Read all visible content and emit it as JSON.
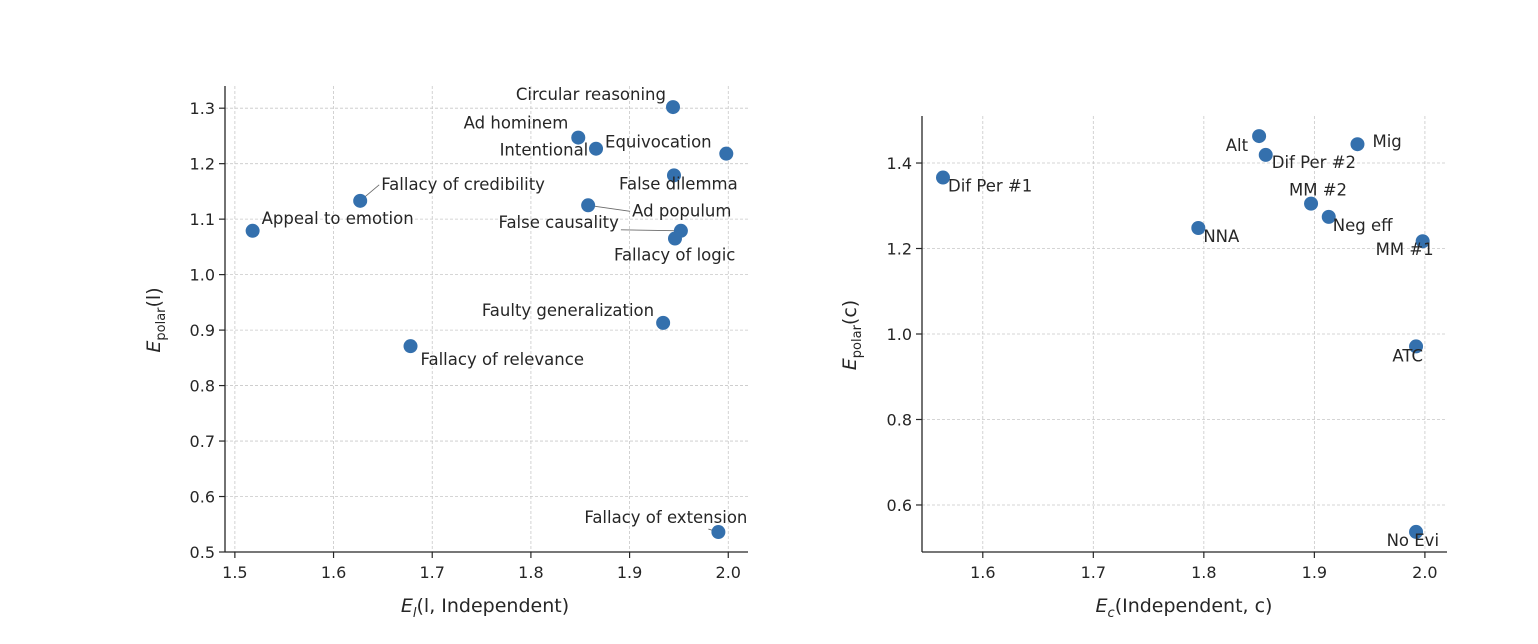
{
  "colors": {
    "point": "#3470ad",
    "axis": "#262626",
    "grid": "#c8c8c8"
  },
  "chart_data": [
    {
      "type": "scatter",
      "title": "",
      "xlabel": {
        "main": "E",
        "sub": "l",
        "paren": "(l, Independent)"
      },
      "ylabel": {
        "main": "E",
        "sub": "polar",
        "paren": "(l)"
      },
      "xlim": [
        1.49,
        2.02
      ],
      "ylim": [
        0.5,
        1.34
      ],
      "xticks": [
        "1.5",
        "1.6",
        "1.7",
        "1.8",
        "1.9",
        "2.0"
      ],
      "yticks": [
        "0.5",
        "0.6",
        "0.7",
        "0.8",
        "0.9",
        "1.0",
        "1.1",
        "1.2",
        "1.3"
      ],
      "grid": true,
      "points": [
        {
          "label": "Circular reasoning",
          "x": 1.944,
          "y": 1.302
        },
        {
          "label": "Ad hominem",
          "x": 1.848,
          "y": 1.247
        },
        {
          "label": "Equivocation",
          "x": 1.866,
          "y": 1.227
        },
        {
          "label": "Intentional",
          "x": 1.998,
          "y": 1.218
        },
        {
          "label": "False dilemma",
          "x": 1.945,
          "y": 1.179
        },
        {
          "label": "Fallacy of credibility",
          "x": 1.627,
          "y": 1.133
        },
        {
          "label": "Ad populum",
          "x": 1.858,
          "y": 1.125
        },
        {
          "label": "Appeal to emotion",
          "x": 1.518,
          "y": 1.079
        },
        {
          "label": "False causality",
          "x": 1.952,
          "y": 1.079
        },
        {
          "label": "Fallacy of logic",
          "x": 1.946,
          "y": 1.065
        },
        {
          "label": "Faulty generalization",
          "x": 1.934,
          "y": 0.913
        },
        {
          "label": "Fallacy of relevance",
          "x": 1.678,
          "y": 0.871
        },
        {
          "label": "Fallacy of extension",
          "x": 1.99,
          "y": 0.536
        }
      ]
    },
    {
      "type": "scatter",
      "title": "",
      "xlabel": {
        "main": "E",
        "sub": "c",
        "paren": "(Independent, c)"
      },
      "ylabel": {
        "main": "E",
        "sub": "polar",
        "paren": "(c)"
      },
      "xlim": [
        1.545,
        2.02
      ],
      "ylim": [
        0.49,
        1.51
      ],
      "xticks": [
        "1.6",
        "1.7",
        "1.8",
        "1.9",
        "2.0"
      ],
      "yticks": [
        "0.6",
        "0.8",
        "1.0",
        "1.2",
        "1.4"
      ],
      "grid": true,
      "points": [
        {
          "label": "Alt",
          "x": 1.85,
          "y": 1.463
        },
        {
          "label": "Mig",
          "x": 1.939,
          "y": 1.444
        },
        {
          "label": "Dif Per #2",
          "x": 1.856,
          "y": 1.419
        },
        {
          "label": "Dif Per #1",
          "x": 1.564,
          "y": 1.366
        },
        {
          "label": "MM #2",
          "x": 1.897,
          "y": 1.305
        },
        {
          "label": "Neg eff",
          "x": 1.913,
          "y": 1.274
        },
        {
          "label": "NNA",
          "x": 1.795,
          "y": 1.248
        },
        {
          "label": "MM #1",
          "x": 1.998,
          "y": 1.217
        },
        {
          "label": "ATC",
          "x": 1.992,
          "y": 0.971
        },
        {
          "label": "No Evi",
          "x": 1.992,
          "y": 0.537
        }
      ]
    }
  ]
}
